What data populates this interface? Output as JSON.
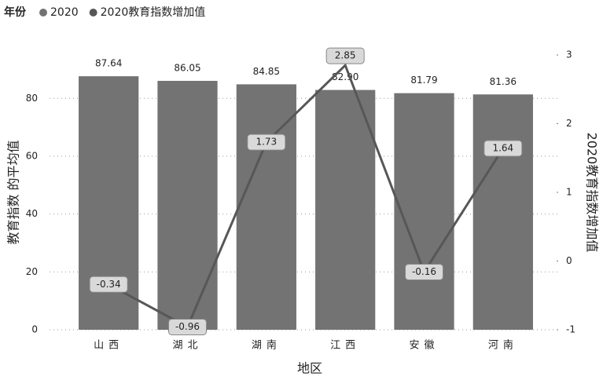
{
  "chart_data": {
    "type": "bar",
    "legend_title": "年份",
    "x_label": "地区",
    "y_label": "教育指数 的平均值",
    "y2_label": "2020教育指数增加值",
    "categories": [
      "山西",
      "湖北",
      "湖南",
      "江西",
      "安徽",
      "河南"
    ],
    "series": [
      {
        "name": "2020",
        "type": "bar",
        "color": "#737373",
        "values": [
          87.64,
          86.05,
          84.85,
          82.9,
          81.79,
          81.36
        ],
        "value_labels": [
          "87.64",
          "86.05",
          "84.85",
          "82.90",
          "81.79",
          "81.36"
        ]
      },
      {
        "name": "2020教育指数增加值",
        "type": "line",
        "axis": "y2",
        "color": "#575757",
        "values": [
          -0.34,
          -0.96,
          1.73,
          2.85,
          -0.16,
          1.64
        ]
      }
    ],
    "ylim": [
      0,
      95
    ],
    "yticks": [
      0,
      20,
      40,
      60,
      80
    ],
    "y2lim": [
      -1,
      3
    ],
    "y2ticks": [
      -1,
      0,
      1,
      2,
      3
    ],
    "grid": true
  }
}
